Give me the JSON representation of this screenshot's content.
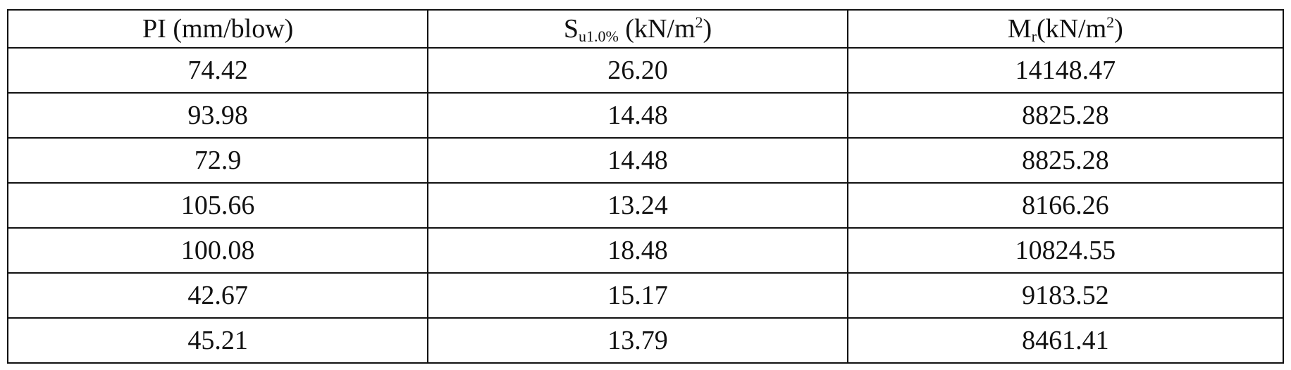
{
  "headers": [
    {
      "main": "PI (mm/blow)",
      "sub": "",
      "rest": "",
      "sup": "",
      "end": ""
    },
    {
      "main": "S",
      "sub": "u1.0%",
      "rest": " (kN/m",
      "sup": "2",
      "end": ")"
    },
    {
      "main": "M",
      "sub": "r",
      "rest": "(kN/m",
      "sup": "2",
      "end": ")"
    }
  ],
  "rows": [
    [
      "74.42",
      "26.20",
      "14148.47"
    ],
    [
      "93.98",
      "14.48",
      "8825.28"
    ],
    [
      "72.9",
      "14.48",
      "8825.28"
    ],
    [
      "105.66",
      "13.24",
      "8166.26"
    ],
    [
      "100.08",
      "18.48",
      "10824.55"
    ],
    [
      "42.67",
      "15.17",
      "9183.52"
    ],
    [
      "45.21",
      "13.79",
      "8461.41"
    ]
  ]
}
